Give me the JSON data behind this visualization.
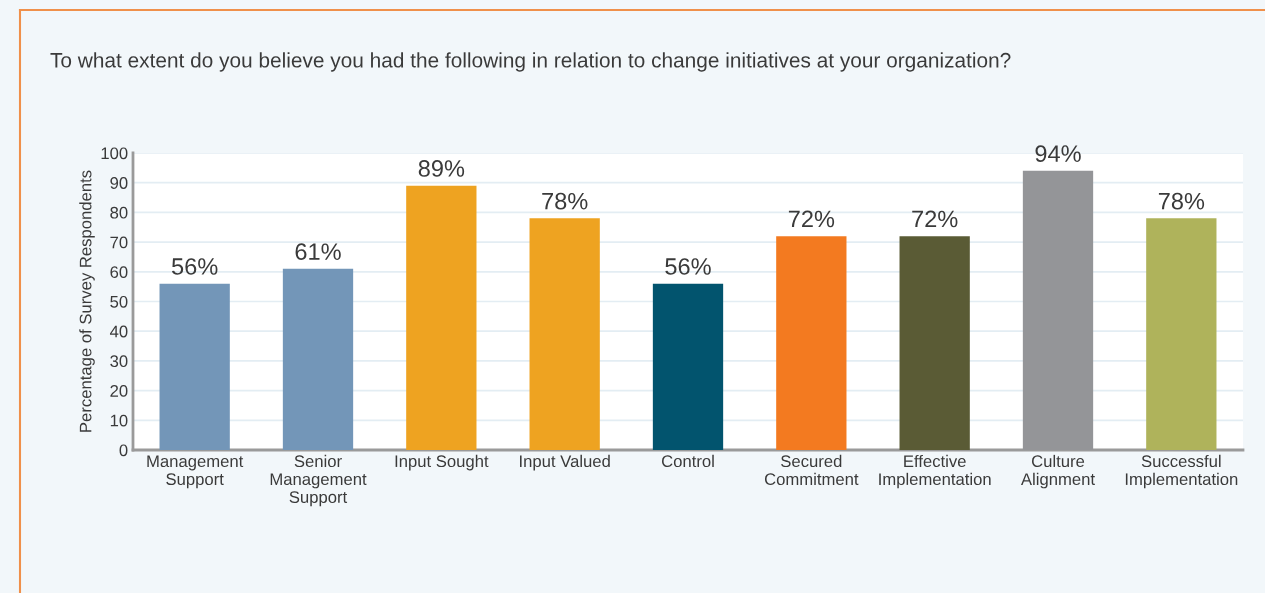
{
  "chart_data": {
    "type": "bar",
    "title": "To what extent do you believe you had the following in relation to change initiatives at your organization?",
    "ylabel": "Percentage of Survey Respondents",
    "categories": [
      "Management\nSupport",
      "Senior\nManagement\nSupport",
      "Input Sought",
      "Input Valued",
      "Control",
      "Secured\nCommitment",
      "Effective\nImplementation",
      "Culture\nAlignment",
      "Successful\nImplementation"
    ],
    "values": [
      56,
      61,
      89,
      78,
      56,
      72,
      72,
      94,
      78
    ],
    "colors": [
      "#7396b8",
      "#7396b8",
      "#eea321",
      "#eea321",
      "#02546e",
      "#f37a20",
      "#5a5b35",
      "#949598",
      "#afb35b"
    ],
    "value_labels": [
      "56%",
      "61%",
      "89%",
      "78%",
      "56%",
      "72%",
      "72%",
      "94%",
      "78%"
    ],
    "ylim": [
      0,
      100
    ],
    "yticks": [
      0,
      10,
      20,
      30,
      40,
      50,
      60,
      70,
      80,
      90,
      100
    ],
    "grid": "y"
  }
}
